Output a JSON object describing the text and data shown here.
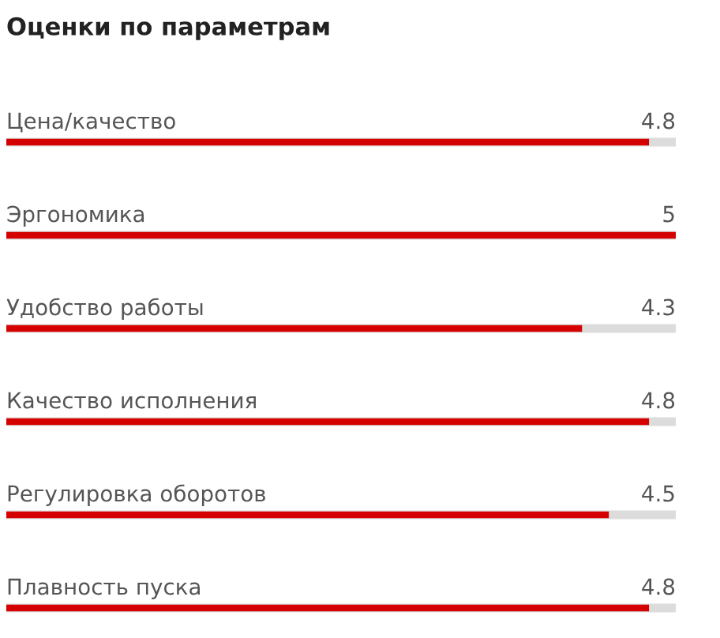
{
  "chart_data": {
    "type": "bar",
    "orientation": "horizontal",
    "title": "Оценки по параметрам",
    "categories": [
      "Цена/качество",
      "Эргономика",
      "Удобство работы",
      "Качество исполнения",
      "Регулировка оборотов",
      "Плавность пуска"
    ],
    "series": [
      {
        "color": "#d50000",
        "values": [
          4.8,
          5,
          4.3,
          4.8,
          4.5,
          4.8
        ]
      }
    ],
    "data_labels": true
  }
}
